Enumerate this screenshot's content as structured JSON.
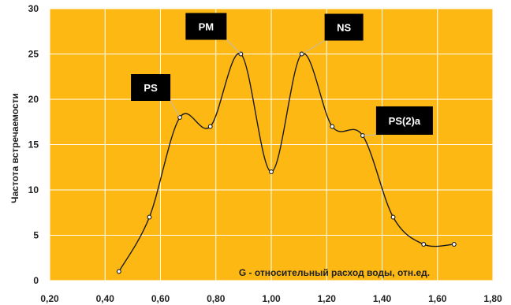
{
  "chart_data": {
    "type": "line",
    "xlabel": "G - относительный расход воды, отн.ед.",
    "ylabel": "Частота встречаемости",
    "xlim": [
      0.2,
      1.8
    ],
    "ylim": [
      0,
      30
    ],
    "x_ticks": [
      "0,20",
      "0,40",
      "0,60",
      "0,80",
      "1,00",
      "1,20",
      "1,40",
      "1,60",
      "1,80"
    ],
    "y_ticks": [
      "0",
      "5",
      "10",
      "15",
      "20",
      "25",
      "30"
    ],
    "grid": true,
    "series": [
      {
        "x": [
          0.45,
          0.56,
          0.67,
          0.78,
          0.89,
          1.0,
          1.11,
          1.22,
          1.33,
          1.44,
          1.55,
          1.66
        ],
        "values": [
          1,
          7,
          18,
          17,
          25,
          12,
          25,
          17,
          16,
          7,
          4,
          4
        ]
      }
    ],
    "annotations": [
      {
        "text": "PS",
        "x": 0.67,
        "y": 18
      },
      {
        "text": "PM",
        "x": 0.89,
        "y": 25
      },
      {
        "text": "NS",
        "x": 1.11,
        "y": 25
      },
      {
        "text": "PS(2)a",
        "x": 1.33,
        "y": 16
      }
    ],
    "colors": {
      "plot_bg": "#FDB813",
      "grid": "#ffffff",
      "line": "#1a1a1a",
      "label_box": "#000000",
      "label_text": "#ffffff"
    }
  }
}
